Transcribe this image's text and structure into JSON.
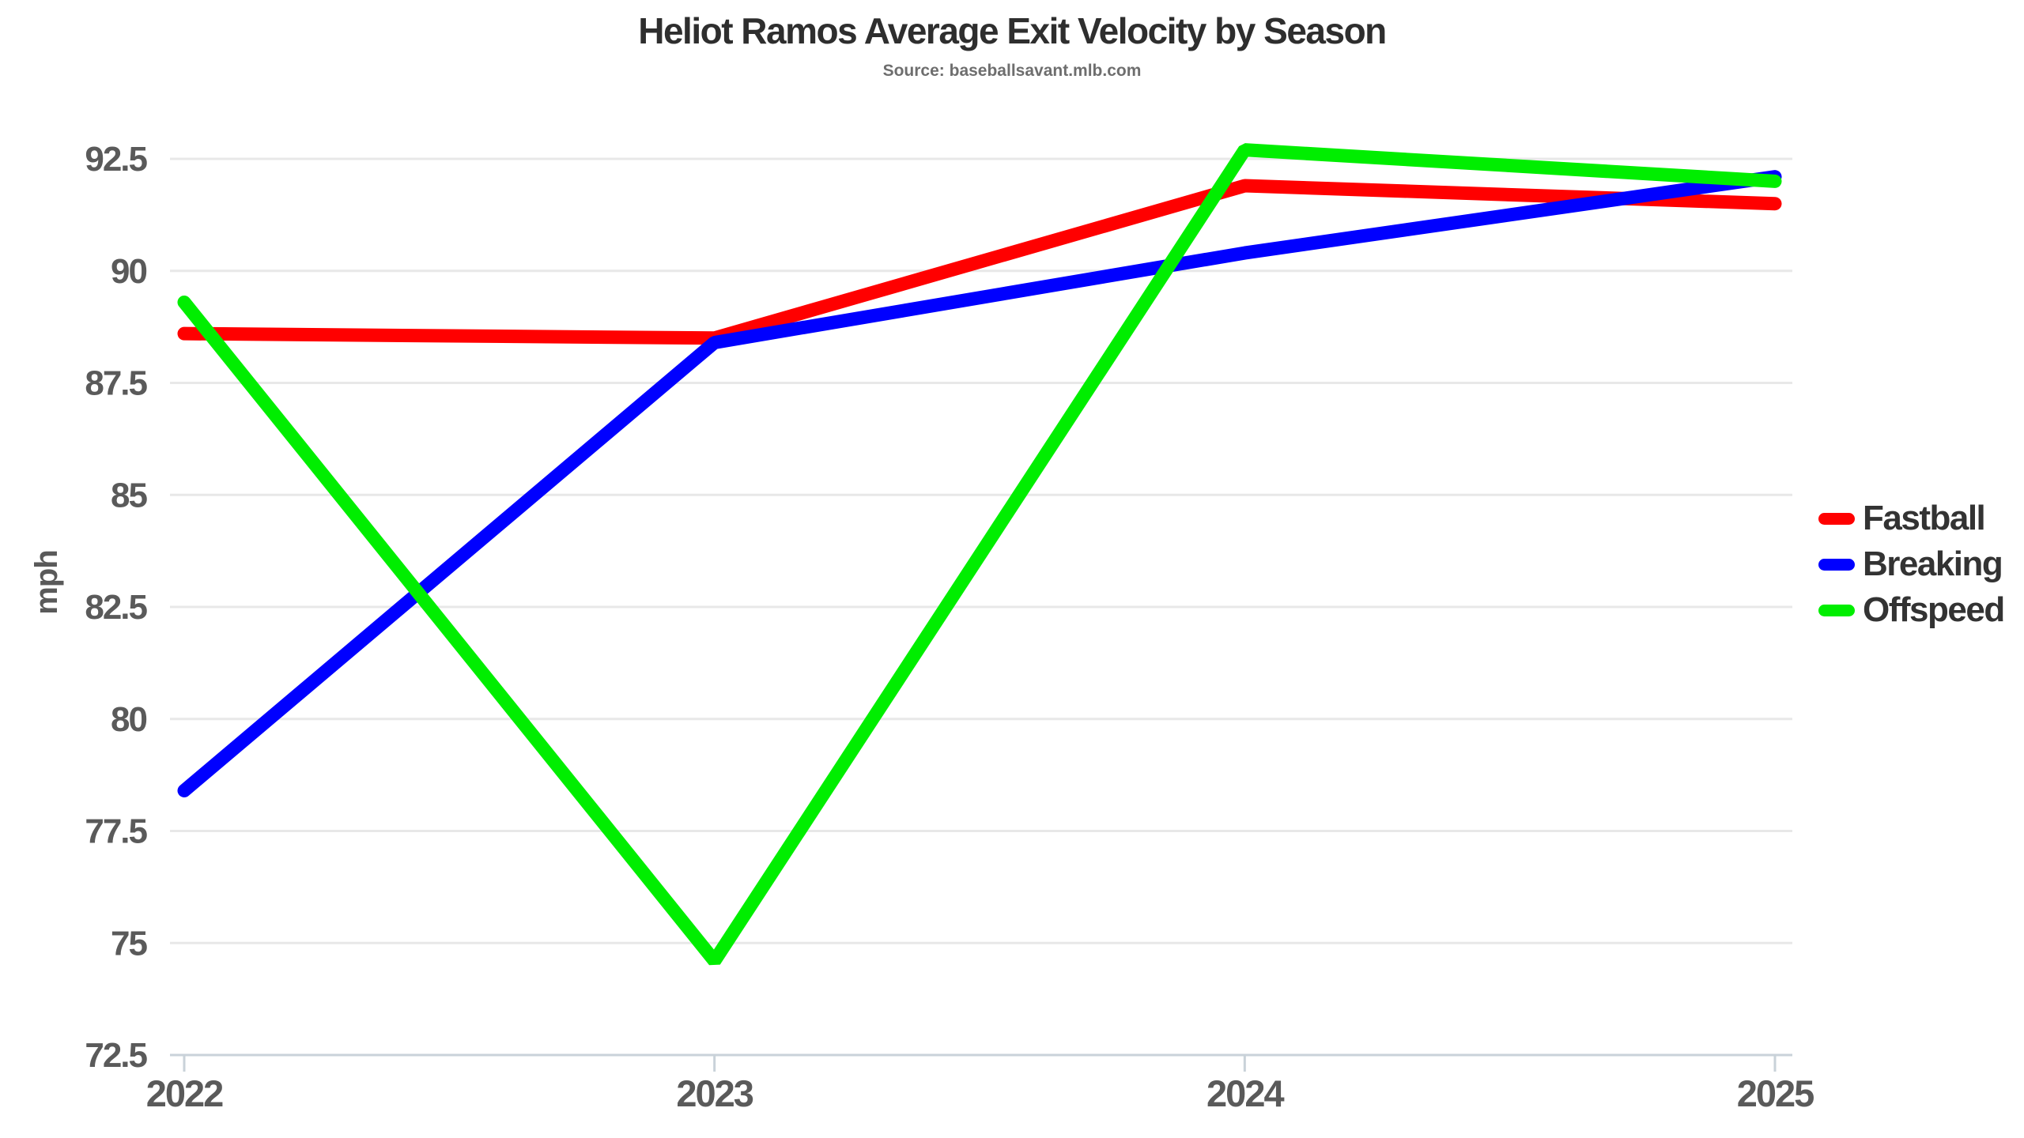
{
  "page": {
    "title": "Heliot Ramos Average Exit Velocity by Season",
    "subtitle": "Source: baseballsavant.mlb.com"
  },
  "chart_data": {
    "type": "line",
    "title": "Heliot Ramos Average Exit Velocity by Season",
    "subtitle": "Source: baseballsavant.mlb.com",
    "x": [
      "2022",
      "2023",
      "2024",
      "2025"
    ],
    "xlabel": "",
    "ylabel": "mph",
    "ylim": [
      72.5,
      93.0
    ],
    "yticks": [
      72.5,
      75,
      77.5,
      80,
      82.5,
      85,
      87.5,
      90,
      92.5
    ],
    "grid": true,
    "legend_position": "center-right",
    "series": [
      {
        "name": "Fastball",
        "color": "#ff0000",
        "values": [
          88.6,
          88.5,
          91.9,
          91.5
        ]
      },
      {
        "name": "Breaking",
        "color": "#0000ff",
        "values": [
          78.4,
          88.4,
          90.4,
          92.1
        ]
      },
      {
        "name": "Offspeed",
        "color": "#00ee00",
        "values": [
          89.3,
          74.6,
          92.7,
          92.0
        ]
      }
    ]
  },
  "style": {
    "title_color": "#2e2e2e",
    "subtitle_color": "#6e6e6e",
    "tick_label_color": "#5a5a5a",
    "grid_color": "#e8e8e8",
    "axis_color": "#c9d2d9",
    "legend_text_color": "#333333"
  }
}
